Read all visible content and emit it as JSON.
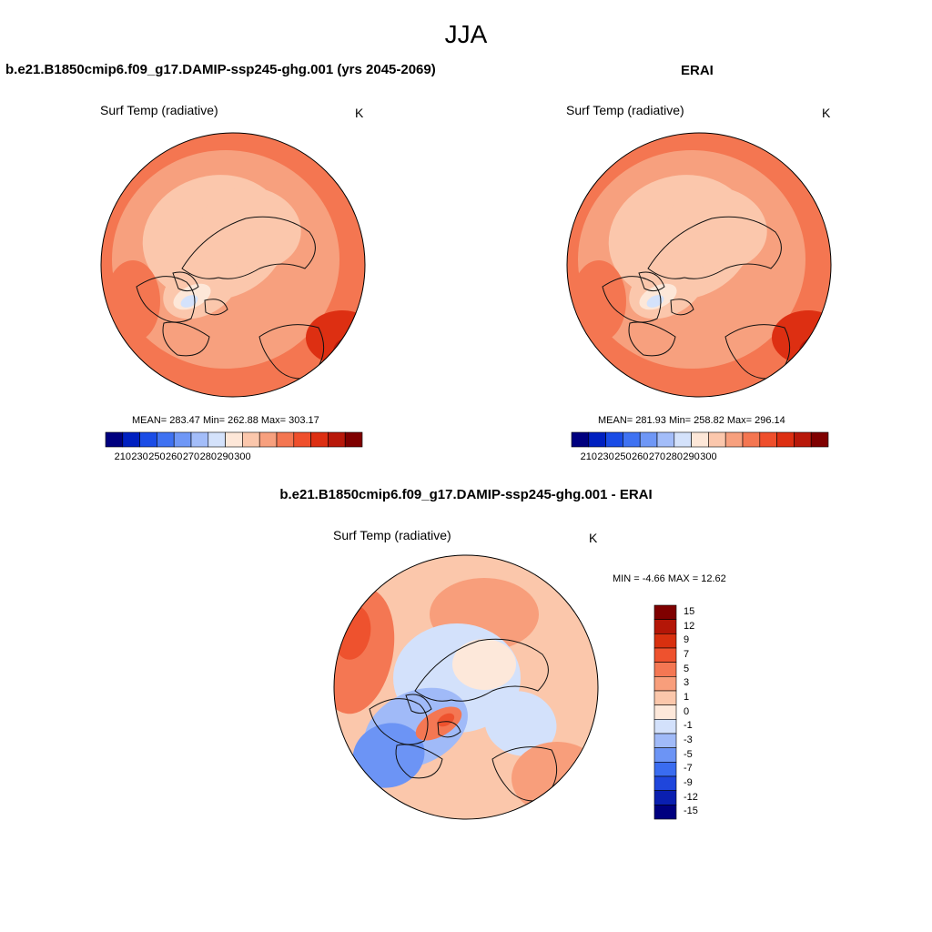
{
  "page": {
    "title": "JJA",
    "left_panel_title": "b.e21.B1850cmip6.f09_g17.DAMIP-ssp245-ghg.001 (yrs 2045-2069)",
    "right_panel_title": "ERAI",
    "diff_panel_title": "b.e21.B1850cmip6.f09_g17.DAMIP-ssp245-ghg.001 - ERAI"
  },
  "colors": {
    "abs_scale": [
      "#00007f",
      "#0020c0",
      "#1a4ce6",
      "#3f72f2",
      "#6f97f6",
      "#a3bdf9",
      "#d4e2fb",
      "#fde7d8",
      "#fbc7ac",
      "#f7a07e",
      "#f47651",
      "#ef4f2c",
      "#dd2f12",
      "#b8180a",
      "#7f0000"
    ],
    "diff_scale": [
      "#00007f",
      "#0a1fb0",
      "#1f46dc",
      "#3a6cf0",
      "#6c94f5",
      "#a0baf8",
      "#d3e1fb",
      "#fde8da",
      "#fbc7ab",
      "#f89e7b",
      "#f47753",
      "#ee522e",
      "#d8300f",
      "#b41607",
      "#7f0000"
    ],
    "land_outline": "#111111"
  },
  "chart_data": [
    {
      "type": "heatmap",
      "panel": "model",
      "variable_label": "Surf Temp (radiative)",
      "units": "K",
      "stats": {
        "mean": "283.47",
        "min": "262.88",
        "max": "303.17"
      },
      "stats_text": "MEAN= 283.47  Min= 262.88  Max= 303.17",
      "colorbar": {
        "orientation": "horizontal",
        "levels": [
          "210",
          "230",
          "250",
          "260",
          "270",
          "280",
          "290",
          "300"
        ]
      },
      "projection": "north-polar-stereographic"
    },
    {
      "type": "heatmap",
      "panel": "obs",
      "variable_label": "Surf Temp (radiative)",
      "units": "K",
      "stats": {
        "mean": "281.93",
        "min": "258.82",
        "max": "296.14"
      },
      "stats_text": "MEAN= 281.93  Min= 258.82  Max= 296.14",
      "colorbar": {
        "orientation": "horizontal",
        "levels": [
          "210",
          "230",
          "250",
          "260",
          "270",
          "280",
          "290",
          "300"
        ]
      },
      "projection": "north-polar-stereographic"
    },
    {
      "type": "heatmap",
      "panel": "difference",
      "variable_label": "Surf Temp (radiative)",
      "units": "K",
      "stats": {
        "min": "-4.66",
        "max": "12.62"
      },
      "stats_text": "MIN =  -4.66 MAX =  12.62",
      "colorbar": {
        "orientation": "vertical",
        "levels": [
          "15",
          "12",
          "9",
          "7",
          "5",
          "3",
          "1",
          "0",
          "-1",
          "-3",
          "-5",
          "-7",
          "-9",
          "-12",
          "-15"
        ]
      },
      "projection": "north-polar-stereographic"
    }
  ]
}
